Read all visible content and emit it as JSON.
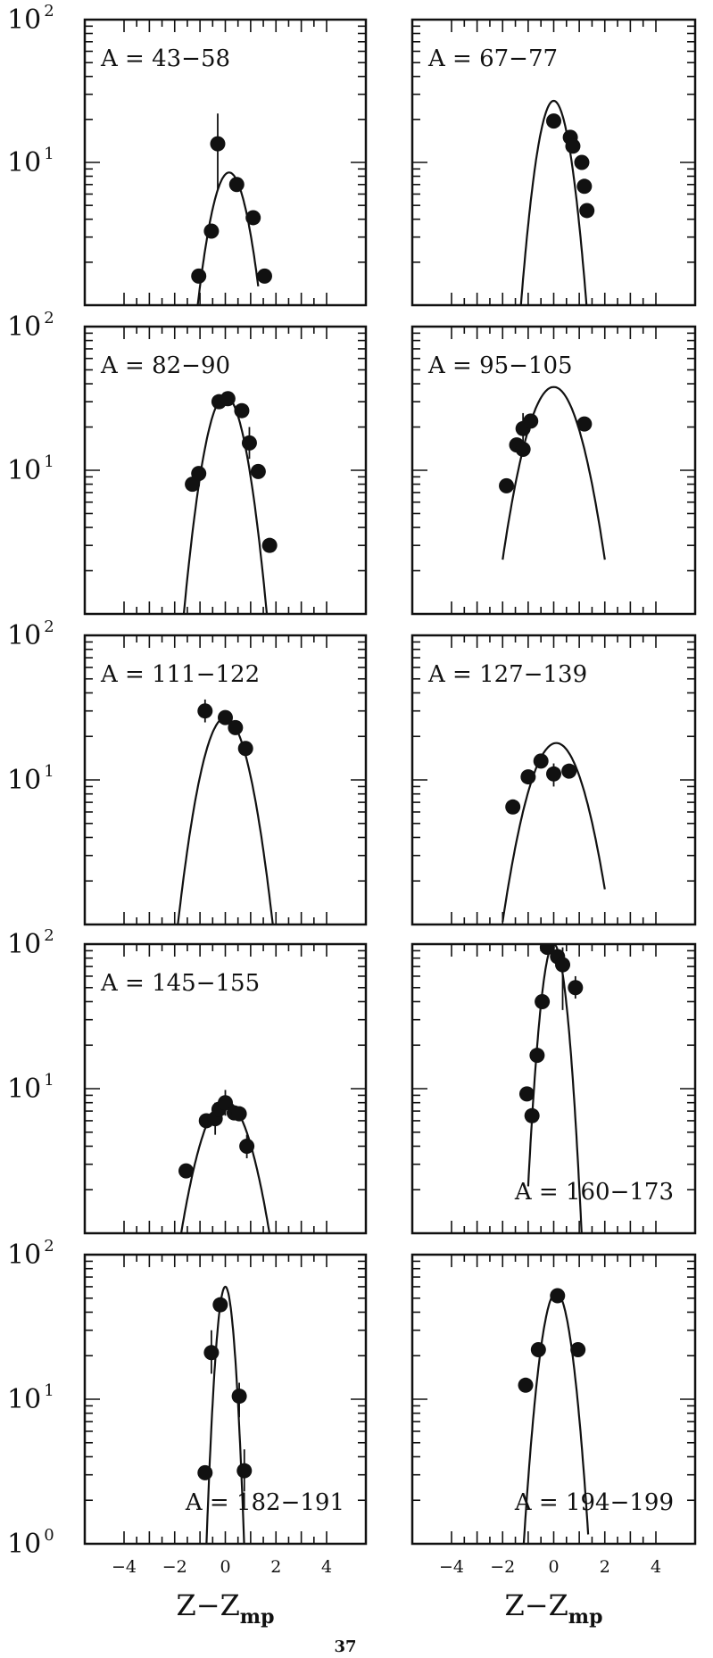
{
  "page_number": "37",
  "chart_data": {
    "type": "scatter",
    "layout": "5x2 panel grid of log-scale distributions with fitted Gaussian curves",
    "y_scale": "log",
    "ylim": [
      1,
      100
    ],
    "xlim": [
      -4,
      4
    ],
    "x_ticks": [
      "−4",
      "−2",
      "0",
      "2",
      "4"
    ],
    "x_ticks_right_column_first": "4",
    "y_ticks": [
      {
        "value": 100,
        "base": "10",
        "exp": "2"
      },
      {
        "value": 10,
        "base": "10",
        "exp": "1"
      },
      {
        "value": 1,
        "base": "10",
        "exp": "0"
      }
    ],
    "xlabel": {
      "base": "Z−Z",
      "sub": "mp"
    },
    "panels": [
      {
        "label": "A = 43−58",
        "label_pos": "top-left",
        "fit": {
          "peak": 8.5,
          "center": 0.15,
          "sigma": 0.6,
          "range": [
            -1.15,
            1.3
          ]
        },
        "points": [
          {
            "x": -1.05,
            "y": 1.6
          },
          {
            "x": -0.55,
            "y": 3.3
          },
          {
            "x": -0.3,
            "y": 13.5,
            "err": [
              6.5,
              22
            ]
          },
          {
            "x": 0.45,
            "y": 7.0
          },
          {
            "x": 1.1,
            "y": 4.1
          },
          {
            "x": 1.55,
            "y": 1.6
          }
        ]
      },
      {
        "label": "A = 67−77",
        "label_pos": "top-left",
        "fit": {
          "peak": 27,
          "center": 0.0,
          "sigma": 0.5,
          "range": [
            -1.35,
            1.35
          ]
        },
        "points": [
          {
            "x": 0.0,
            "y": 19.5
          },
          {
            "x": 0.65,
            "y": 15
          },
          {
            "x": 0.75,
            "y": 13
          },
          {
            "x": 1.1,
            "y": 10
          },
          {
            "x": 1.2,
            "y": 6.8
          },
          {
            "x": 1.3,
            "y": 4.6
          }
        ]
      },
      {
        "label": "A = 82−90",
        "label_pos": "top-left",
        "fit": {
          "peak": 33,
          "center": 0.0,
          "sigma": 0.62,
          "range": [
            -1.85,
            2.2
          ]
        },
        "points": [
          {
            "x": -1.3,
            "y": 8.0
          },
          {
            "x": -1.05,
            "y": 9.5
          },
          {
            "x": -0.25,
            "y": 30
          },
          {
            "x": 0.1,
            "y": 31.5
          },
          {
            "x": 0.65,
            "y": 26
          },
          {
            "x": 0.95,
            "y": 15.5,
            "err": [
              12,
              20
            ]
          },
          {
            "x": 1.3,
            "y": 9.8
          },
          {
            "x": 1.75,
            "y": 3.0
          }
        ]
      },
      {
        "label": "A = 95−105",
        "label_pos": "top-left",
        "fit": {
          "peak": 38,
          "center": 0.0,
          "sigma": 0.85,
          "range": [
            -2.0,
            2.0
          ]
        },
        "points": [
          {
            "x": -1.85,
            "y": 7.8
          },
          {
            "x": -1.45,
            "y": 15
          },
          {
            "x": -1.2,
            "y": 19.5,
            "err": [
              15,
              25
            ]
          },
          {
            "x": -1.2,
            "y": 14
          },
          {
            "x": -0.9,
            "y": 22
          },
          {
            "x": 1.2,
            "y": 21
          }
        ]
      },
      {
        "label": "A = 111−122",
        "label_pos": "top-left",
        "fit": {
          "peak": 27,
          "center": 0.0,
          "sigma": 0.73,
          "range": [
            -2.0,
            2.0
          ]
        },
        "points": [
          {
            "x": -0.8,
            "y": 30,
            "err": [
              25,
              36
            ]
          },
          {
            "x": 0.0,
            "y": 27
          },
          {
            "x": 0.4,
            "y": 23
          },
          {
            "x": 0.8,
            "y": 16.5
          }
        ]
      },
      {
        "label": "A = 127−139",
        "label_pos": "top-left",
        "fit": {
          "peak": 18,
          "center": 0.1,
          "sigma": 0.88,
          "range": [
            -2.0,
            2.0
          ]
        },
        "points": [
          {
            "x": -1.6,
            "y": 6.5
          },
          {
            "x": -1.0,
            "y": 10.5
          },
          {
            "x": -0.5,
            "y": 13.5
          },
          {
            "x": 0.0,
            "y": 11,
            "err": [
              9,
              13
            ]
          },
          {
            "x": 0.6,
            "y": 11.5
          }
        ]
      },
      {
        "label": "A = 145−155",
        "label_pos": "top-left",
        "fit": {
          "peak": 8.2,
          "center": 0.0,
          "sigma": 0.85,
          "range": [
            -1.95,
            2.0
          ]
        },
        "points": [
          {
            "x": -1.55,
            "y": 2.7
          },
          {
            "x": -0.75,
            "y": 6.0
          },
          {
            "x": -0.4,
            "y": 6.2,
            "err": [
              4.8,
              8
            ]
          },
          {
            "x": -0.25,
            "y": 7.2
          },
          {
            "x": 0.0,
            "y": 8.0,
            "err": [
              6.5,
              9.8
            ]
          },
          {
            "x": 0.35,
            "y": 6.8
          },
          {
            "x": 0.55,
            "y": 6.7
          },
          {
            "x": 0.85,
            "y": 4.0,
            "err": [
              3.3,
              4.8
            ]
          }
        ]
      },
      {
        "label": "A = 160−173",
        "label_pos": "bottom-right",
        "fit": {
          "peak": 100,
          "center": 0.0,
          "sigma": 0.36,
          "range": [
            -1.0,
            1.1
          ]
        },
        "points": [
          {
            "x": -1.05,
            "y": 9.2
          },
          {
            "x": -0.85,
            "y": 6.5
          },
          {
            "x": -0.65,
            "y": 17
          },
          {
            "x": -0.45,
            "y": 40
          },
          {
            "x": -0.25,
            "y": 95
          },
          {
            "x": 0.15,
            "y": 82
          },
          {
            "x": 0.35,
            "y": 72,
            "err": [
              35,
              95
            ]
          },
          {
            "x": 0.85,
            "y": 50,
            "err": [
              42,
              60
            ]
          }
        ]
      },
      {
        "label": "A = 182−191",
        "label_pos": "bottom-right",
        "fit": {
          "peak": 60,
          "center": 0.0,
          "sigma": 0.26,
          "range": [
            -0.85,
            0.8
          ]
        },
        "points": [
          {
            "x": -0.8,
            "y": 3.1
          },
          {
            "x": -0.55,
            "y": 21,
            "err": [
              15,
              30
            ]
          },
          {
            "x": -0.2,
            "y": 45
          },
          {
            "x": 0.55,
            "y": 10.5,
            "err": [
              7.5,
              13
            ]
          },
          {
            "x": 0.75,
            "y": 3.2,
            "err": [
              2.3,
              4.5
            ]
          }
        ]
      },
      {
        "label": "A = 194−199",
        "label_pos": "bottom-right",
        "fit": {
          "peak": 55,
          "center": 0.1,
          "sigma": 0.45,
          "range": [
            -1.35,
            1.35
          ]
        },
        "points": [
          {
            "x": -1.1,
            "y": 12.5
          },
          {
            "x": -0.6,
            "y": 22
          },
          {
            "x": 0.15,
            "y": 52
          },
          {
            "x": 0.95,
            "y": 22
          }
        ]
      }
    ]
  }
}
